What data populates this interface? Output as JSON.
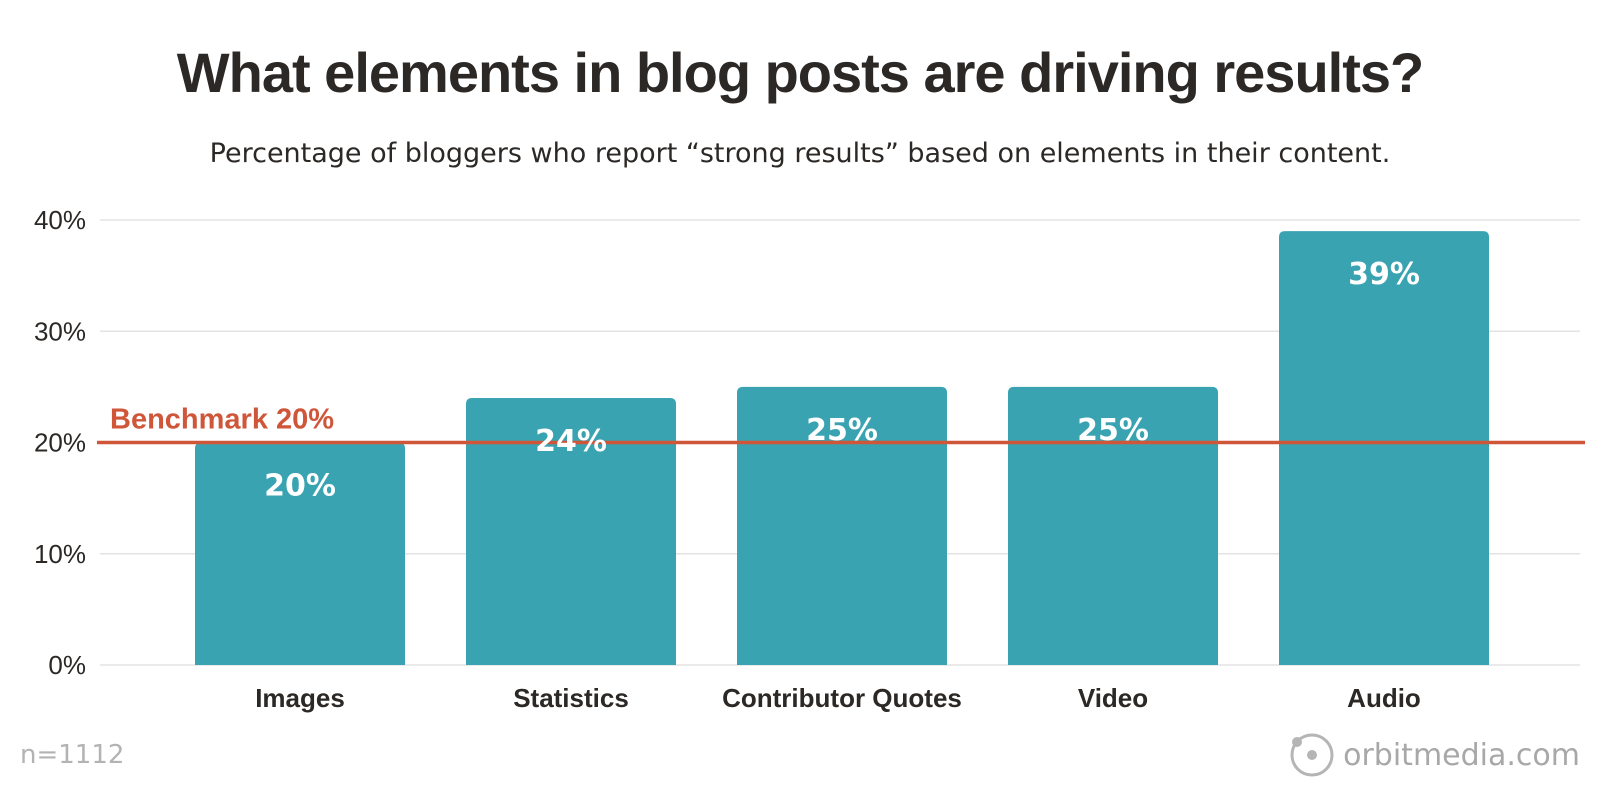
{
  "chart_data": {
    "type": "bar",
    "title": "What elements in blog posts are driving results?",
    "subtitle": "Percentage of bloggers who report “strong results” based on elements in their content.",
    "categories": [
      "Images",
      "Statistics",
      "Contributor Quotes",
      "Video",
      "Audio"
    ],
    "values": [
      20,
      24,
      25,
      25,
      39
    ],
    "data_labels": [
      "20%",
      "24%",
      "25%",
      "25%",
      "39%"
    ],
    "y_ticks": [
      0,
      10,
      20,
      30,
      40
    ],
    "y_tick_labels": [
      "0%",
      "10%",
      "20%",
      "30%",
      "40%"
    ],
    "ylim": [
      0,
      40
    ],
    "grid": true,
    "benchmark": {
      "value": 20,
      "label": "Benchmark 20%",
      "color": "#d0563a"
    },
    "bar_color": "#3aa3b2"
  },
  "footer": {
    "sample_size": "n=1112",
    "brand": "orbitmedia.com"
  }
}
